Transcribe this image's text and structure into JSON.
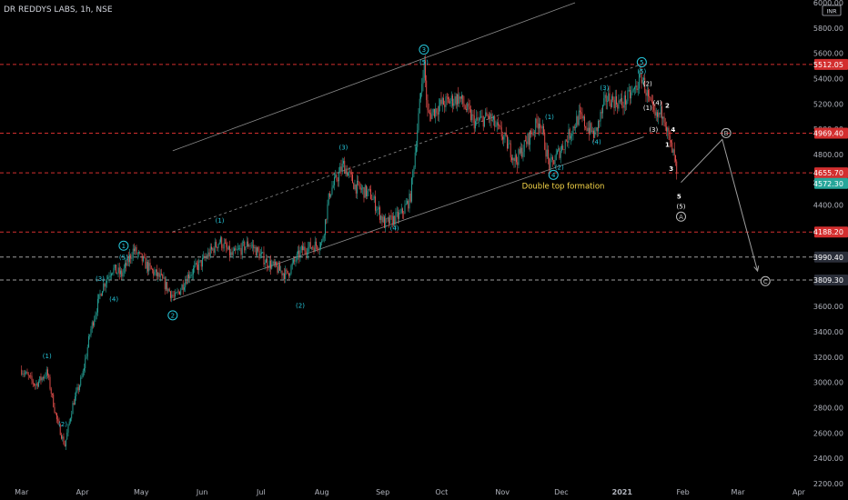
{
  "header": {
    "title": "DR REDDYS LABS, 1h, NSE"
  },
  "chart_data": {
    "type": "candlestick",
    "symbol": "DR REDDYS LABS",
    "timeframe": "1h",
    "exchange": "NSE",
    "currency": "INR",
    "ylim": [
      2200,
      6000
    ],
    "y_ticks": [
      6000,
      5800,
      5600,
      5400,
      5200,
      5000,
      4800,
      4600,
      4400,
      4200,
      4000,
      3800,
      3600,
      3400,
      3200,
      3000,
      2800,
      2600,
      2400,
      2200
    ],
    "x_ticks": [
      "Mar",
      "Apr",
      "May",
      "Jun",
      "Jul",
      "Aug",
      "Sep",
      "Oct",
      "Nov",
      "Dec",
      "2021",
      "Feb",
      "Mar",
      "Apr"
    ],
    "price_path": [
      {
        "x": "2020-03-01",
        "y": 3100
      },
      {
        "x": "2020-03-08",
        "y": 2980
      },
      {
        "x": "2020-03-14",
        "y": 3080
      },
      {
        "x": "2020-03-19",
        "y": 2700
      },
      {
        "x": "2020-03-23",
        "y": 2500
      },
      {
        "x": "2020-03-27",
        "y": 2820
      },
      {
        "x": "2020-04-01",
        "y": 3050
      },
      {
        "x": "2020-04-05",
        "y": 3400
      },
      {
        "x": "2020-04-11",
        "y": 3750
      },
      {
        "x": "2020-04-16",
        "y": 3900
      },
      {
        "x": "2020-04-21",
        "y": 3850
      },
      {
        "x": "2020-04-27",
        "y": 4050
      },
      {
        "x": "2020-05-05",
        "y": 3900
      },
      {
        "x": "2020-05-11",
        "y": 3820
      },
      {
        "x": "2020-05-18",
        "y": 3660
      },
      {
        "x": "2020-05-25",
        "y": 3850
      },
      {
        "x": "2020-06-01",
        "y": 3950
      },
      {
        "x": "2020-06-10",
        "y": 4120
      },
      {
        "x": "2020-06-16",
        "y": 4000
      },
      {
        "x": "2020-06-25",
        "y": 4100
      },
      {
        "x": "2020-07-04",
        "y": 3950
      },
      {
        "x": "2020-07-14",
        "y": 3850
      },
      {
        "x": "2020-07-22",
        "y": 4050
      },
      {
        "x": "2020-08-01",
        "y": 4100
      },
      {
        "x": "2020-08-05",
        "y": 4500
      },
      {
        "x": "2020-08-12",
        "y": 4720
      },
      {
        "x": "2020-08-18",
        "y": 4550
      },
      {
        "x": "2020-08-26",
        "y": 4480
      },
      {
        "x": "2020-09-02",
        "y": 4250
      },
      {
        "x": "2020-09-10",
        "y": 4320
      },
      {
        "x": "2020-09-15",
        "y": 4450
      },
      {
        "x": "2020-09-18",
        "y": 4900
      },
      {
        "x": "2020-09-22",
        "y": 5540
      },
      {
        "x": "2020-09-24",
        "y": 5100
      },
      {
        "x": "2020-10-01",
        "y": 5200
      },
      {
        "x": "2020-10-10",
        "y": 5250
      },
      {
        "x": "2020-10-18",
        "y": 5050
      },
      {
        "x": "2020-10-25",
        "y": 5100
      },
      {
        "x": "2020-11-01",
        "y": 4950
      },
      {
        "x": "2020-11-08",
        "y": 4750
      },
      {
        "x": "2020-11-15",
        "y": 4950
      },
      {
        "x": "2020-11-20",
        "y": 5080
      },
      {
        "x": "2020-11-25",
        "y": 4700
      },
      {
        "x": "2020-12-03",
        "y": 4900
      },
      {
        "x": "2020-12-10",
        "y": 5100
      },
      {
        "x": "2020-12-18",
        "y": 4950
      },
      {
        "x": "2020-12-24",
        "y": 5250
      },
      {
        "x": "2021-01-01",
        "y": 5200
      },
      {
        "x": "2021-01-07",
        "y": 5300
      },
      {
        "x": "2021-01-11",
        "y": 5420
      },
      {
        "x": "2021-01-15",
        "y": 5200
      },
      {
        "x": "2021-01-18",
        "y": 5080
      },
      {
        "x": "2021-01-22",
        "y": 5150
      },
      {
        "x": "2021-01-25",
        "y": 4900
      },
      {
        "x": "2021-01-28",
        "y": 4750
      },
      {
        "x": "2021-01-29",
        "y": 4572
      }
    ],
    "price_labels": [
      {
        "value": 6000.0,
        "text": "6000.00",
        "bg": "#000000",
        "fg": "#b2b5be"
      },
      {
        "value": 5512.05,
        "text": "5512.05",
        "bg": "#d32f2f",
        "fg": "#ffffff"
      },
      {
        "value": 4969.4,
        "text": "4969.40",
        "bg": "#d32f2f",
        "fg": "#ffffff"
      },
      {
        "value": 4655.7,
        "text": "4655.70",
        "bg": "#d32f2f",
        "fg": "#ffffff"
      },
      {
        "value": 4572.3,
        "text": "4572.30",
        "bg": "#26a69a",
        "fg": "#ffffff"
      },
      {
        "value": 4188.2,
        "text": "4188.20",
        "bg": "#d32f2f",
        "fg": "#ffffff"
      },
      {
        "value": 3990.4,
        "text": "3990.40",
        "bg": "#2a2e39",
        "fg": "#ffffff"
      },
      {
        "value": 3809.3,
        "text": "3809.30",
        "bg": "#2a2e39",
        "fg": "#ffffff"
      }
    ],
    "currency_label": "INR",
    "levels": [
      {
        "value": 5512.05,
        "color": "#d32f2f"
      },
      {
        "value": 4969.4,
        "color": "#d32f2f"
      },
      {
        "value": 4655.7,
        "color": "#d32f2f"
      },
      {
        "value": 4188.2,
        "color": "#d32f2f"
      },
      {
        "value": 3990.4,
        "color": "#9e9e9e"
      },
      {
        "value": 3809.3,
        "color": "#9e9e9e"
      }
    ],
    "wave_labels": [
      {
        "text": "1",
        "x": "2020-04-22",
        "y": 4080,
        "style": "circle",
        "color": "#26c6da"
      },
      {
        "text": "2",
        "x": "2020-05-17",
        "y": 3530,
        "style": "circle",
        "color": "#26c6da"
      },
      {
        "text": "3",
        "x": "2020-09-22",
        "y": 5630,
        "style": "circle",
        "color": "#26c6da"
      },
      {
        "text": "4",
        "x": "2020-11-27",
        "y": 4640,
        "style": "circle",
        "color": "#26c6da"
      },
      {
        "text": "5",
        "x": "2021-01-11",
        "y": 5530,
        "style": "circle",
        "color": "#26c6da"
      },
      {
        "text": "(1)",
        "x": "2020-03-14",
        "y": 3210,
        "style": "paren",
        "color": "#26c6da"
      },
      {
        "text": "(2)",
        "x": "2020-03-22",
        "y": 2670,
        "style": "paren",
        "color": "#26c6da"
      },
      {
        "text": "(3)",
        "x": "2020-04-10",
        "y": 3820,
        "style": "paren",
        "color": "#26c6da"
      },
      {
        "text": "(4)",
        "x": "2020-04-17",
        "y": 3660,
        "style": "paren",
        "color": "#26c6da"
      },
      {
        "text": "(5)",
        "x": "2020-04-22",
        "y": 3990,
        "style": "paren",
        "color": "#26c6da"
      },
      {
        "text": "(1)",
        "x": "2020-06-10",
        "y": 4280,
        "style": "paren",
        "color": "#26c6da"
      },
      {
        "text": "(2)",
        "x": "2020-07-21",
        "y": 3610,
        "style": "paren",
        "color": "#26c6da"
      },
      {
        "text": "(3)",
        "x": "2020-08-12",
        "y": 4860,
        "style": "paren",
        "color": "#26c6da"
      },
      {
        "text": "(4)",
        "x": "2020-09-07",
        "y": 4220,
        "style": "paren",
        "color": "#26c6da"
      },
      {
        "text": "(5)",
        "x": "2020-09-22",
        "y": 5530,
        "style": "paren",
        "color": "#26c6da"
      },
      {
        "text": "(1)",
        "x": "2020-11-25",
        "y": 5100,
        "style": "paren",
        "color": "#26c6da"
      },
      {
        "text": "(2)",
        "x": "2020-11-30",
        "y": 4700,
        "style": "paren",
        "color": "#26c6da"
      },
      {
        "text": "(3)",
        "x": "2020-12-23",
        "y": 5330,
        "style": "paren",
        "color": "#26c6da"
      },
      {
        "text": "(4)",
        "x": "2020-12-19",
        "y": 4900,
        "style": "paren",
        "color": "#26c6da"
      },
      {
        "text": "(5)",
        "x": "2021-01-11",
        "y": 5460,
        "style": "paren",
        "color": "#26c6da"
      },
      {
        "text": "(2)",
        "x": "2021-01-14",
        "y": 5360,
        "style": "paren",
        "color": "#ffffff"
      },
      {
        "text": "(1)",
        "x": "2021-01-14",
        "y": 5170,
        "style": "paren",
        "color": "#ffffff"
      },
      {
        "text": "(4)",
        "x": "2021-01-19",
        "y": 5210,
        "style": "paren",
        "color": "#ffffff"
      },
      {
        "text": "(3)",
        "x": "2021-01-17",
        "y": 5000,
        "style": "paren",
        "color": "#ffffff"
      },
      {
        "text": "2",
        "x": "2021-01-24",
        "y": 5190,
        "style": "plain",
        "color": "#ffffff"
      },
      {
        "text": "4",
        "x": "2021-01-27",
        "y": 5000,
        "style": "plain",
        "color": "#ffffff"
      },
      {
        "text": "1",
        "x": "2021-01-24",
        "y": 4880,
        "style": "plain",
        "color": "#ffffff"
      },
      {
        "text": "3",
        "x": "2021-01-26",
        "y": 4690,
        "style": "plain",
        "color": "#ffffff"
      },
      {
        "text": "5",
        "x": "2021-01-30",
        "y": 4470,
        "style": "plain",
        "color": "#ffffff"
      },
      {
        "text": "(5)",
        "x": "2021-01-31",
        "y": 4390,
        "style": "paren",
        "color": "#ffffff"
      },
      {
        "text": "A",
        "x": "2021-01-31",
        "y": 4310,
        "style": "circle",
        "color": "#bdbdbd"
      },
      {
        "text": "B",
        "x": "2021-02-23",
        "y": 4970,
        "style": "circle",
        "color": "#bdbdbd"
      },
      {
        "text": "C",
        "x": "2021-03-15",
        "y": 3800,
        "style": "circle",
        "color": "#bdbdbd"
      }
    ],
    "annotations": [
      {
        "text": "Double top formation",
        "x": "2020-12-02",
        "y": 4530,
        "color": "#f9d849"
      }
    ],
    "projection": [
      {
        "x": "2021-01-31",
        "y": 4580
      },
      {
        "x": "2021-02-21",
        "y": 4920
      },
      {
        "x": "2021-03-11",
        "y": 3880
      }
    ],
    "channel_lines": [
      {
        "from": {
          "x": "2020-05-17",
          "y": 3650
        },
        "to": {
          "x": "2021-01-12",
          "y": 4940
        },
        "style": "solid"
      },
      {
        "from": {
          "x": "2020-05-17",
          "y": 4190
        },
        "to": {
          "x": "2021-01-12",
          "y": 5520
        },
        "style": "dashed"
      },
      {
        "from": {
          "x": "2020-05-17",
          "y": 4830
        },
        "to": {
          "x": "2020-12-08",
          "y": 6000
        },
        "style": "solid"
      }
    ],
    "colors": {
      "up": "#26a69a",
      "down": "#ef5350",
      "background": "#000000",
      "axis_text": "#b2b5be",
      "channel": "#8a8a8a"
    },
    "grid": false
  }
}
